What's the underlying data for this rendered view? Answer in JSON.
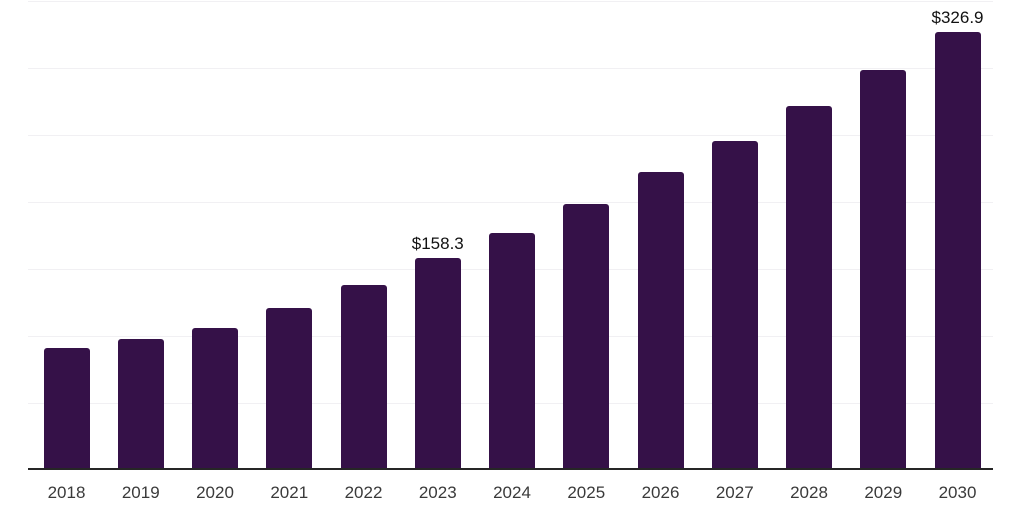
{
  "chart_data": {
    "type": "bar",
    "title": "",
    "xlabel": "",
    "ylabel": "",
    "categories": [
      "2018",
      "2019",
      "2020",
      "2021",
      "2022",
      "2023",
      "2024",
      "2025",
      "2026",
      "2027",
      "2028",
      "2029",
      "2030"
    ],
    "values": [
      91.0,
      97.6,
      106.2,
      121.1,
      138.2,
      158.3,
      177.2,
      198.8,
      222.2,
      245.4,
      271.7,
      298.6,
      326.9
    ],
    "value_prefix": "$",
    "data_labels": [
      {
        "index": 5,
        "category": "2023",
        "text": "$158.3"
      },
      {
        "index": 12,
        "category": "2030",
        "text": "$326.9"
      }
    ],
    "ylim": [
      0,
      350
    ],
    "gridline_step": 50,
    "grid": "horizontal",
    "legend_position": "none"
  },
  "colors": {
    "bar": "#351148",
    "background": "#ffffff",
    "gridline": "#f1f0f3",
    "axis_line": "#262626",
    "tick_label": "#3a3a3a",
    "data_label": "#111111"
  }
}
